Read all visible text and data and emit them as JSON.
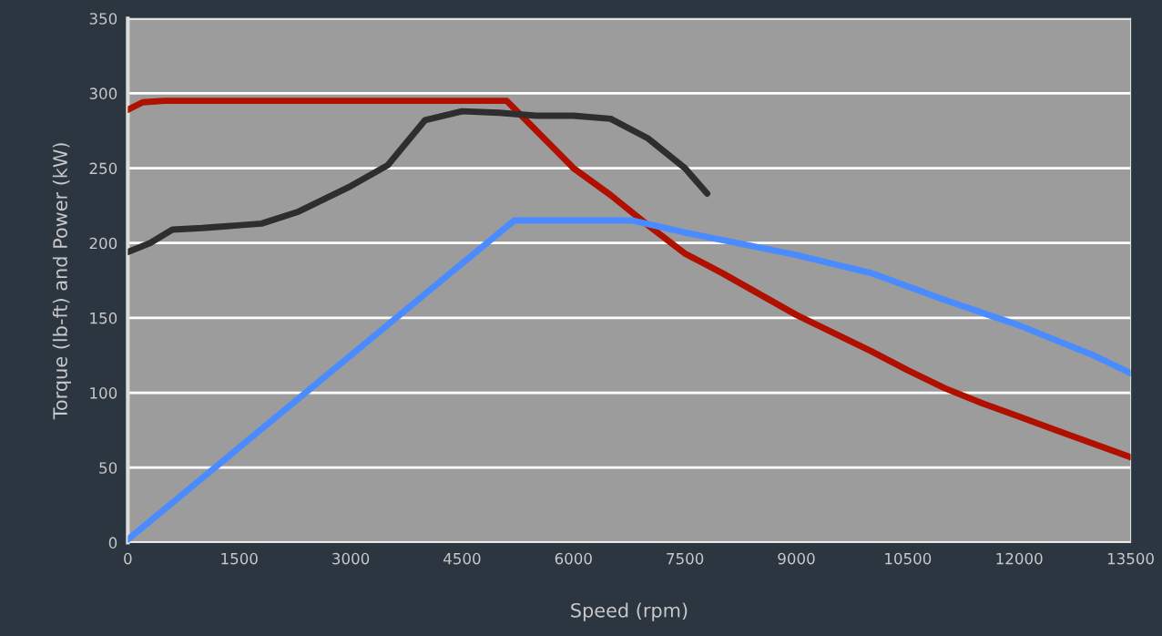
{
  "chart_data": {
    "type": "line",
    "xlabel": "Speed (rpm)",
    "ylabel": "Torque (lb-ft) and Power (kW)",
    "xlim": [
      0,
      13500
    ],
    "xticks": [
      0,
      1500,
      3000,
      4500,
      6000,
      7500,
      9000,
      10500,
      12000,
      13500
    ],
    "ylim": [
      0,
      350
    ],
    "yticks": [
      0,
      50,
      100,
      150,
      200,
      250,
      300,
      350
    ],
    "grid": "y",
    "legend": false,
    "marker": "none",
    "line_style": "solid",
    "series": [
      {
        "color": "#b01000",
        "x": [
          0,
          200,
          500,
          5100,
          5300,
          5700,
          6000,
          6500,
          7000,
          7500,
          8000,
          8500,
          9000,
          9500,
          10000,
          10500,
          11000,
          11500,
          12000,
          12500,
          13000,
          13500
        ],
        "values": [
          289,
          294,
          295,
          295,
          285,
          265,
          250,
          232,
          212,
          193,
          180,
          166,
          152,
          140,
          128,
          115,
          103,
          93,
          84,
          75,
          66,
          57
        ]
      },
      {
        "color": "#2e2e2e",
        "x": [
          0,
          300,
          600,
          1000,
          1800,
          2300,
          3000,
          3500,
          4000,
          4500,
          5000,
          5500,
          6000,
          6500,
          7000,
          7500,
          7800
        ],
        "values": [
          194,
          200,
          209,
          210,
          213,
          221,
          238,
          252,
          282,
          288,
          287,
          285,
          285,
          283,
          270,
          250,
          233
        ]
      },
      {
        "color": "#4a8cff",
        "x": [
          0,
          5200,
          6800,
          7500,
          8000,
          9000,
          10000,
          11000,
          12000,
          13000,
          13500
        ],
        "values": [
          2,
          215,
          215,
          207,
          202,
          192,
          180,
          162,
          145,
          125,
          113
        ]
      }
    ]
  }
}
